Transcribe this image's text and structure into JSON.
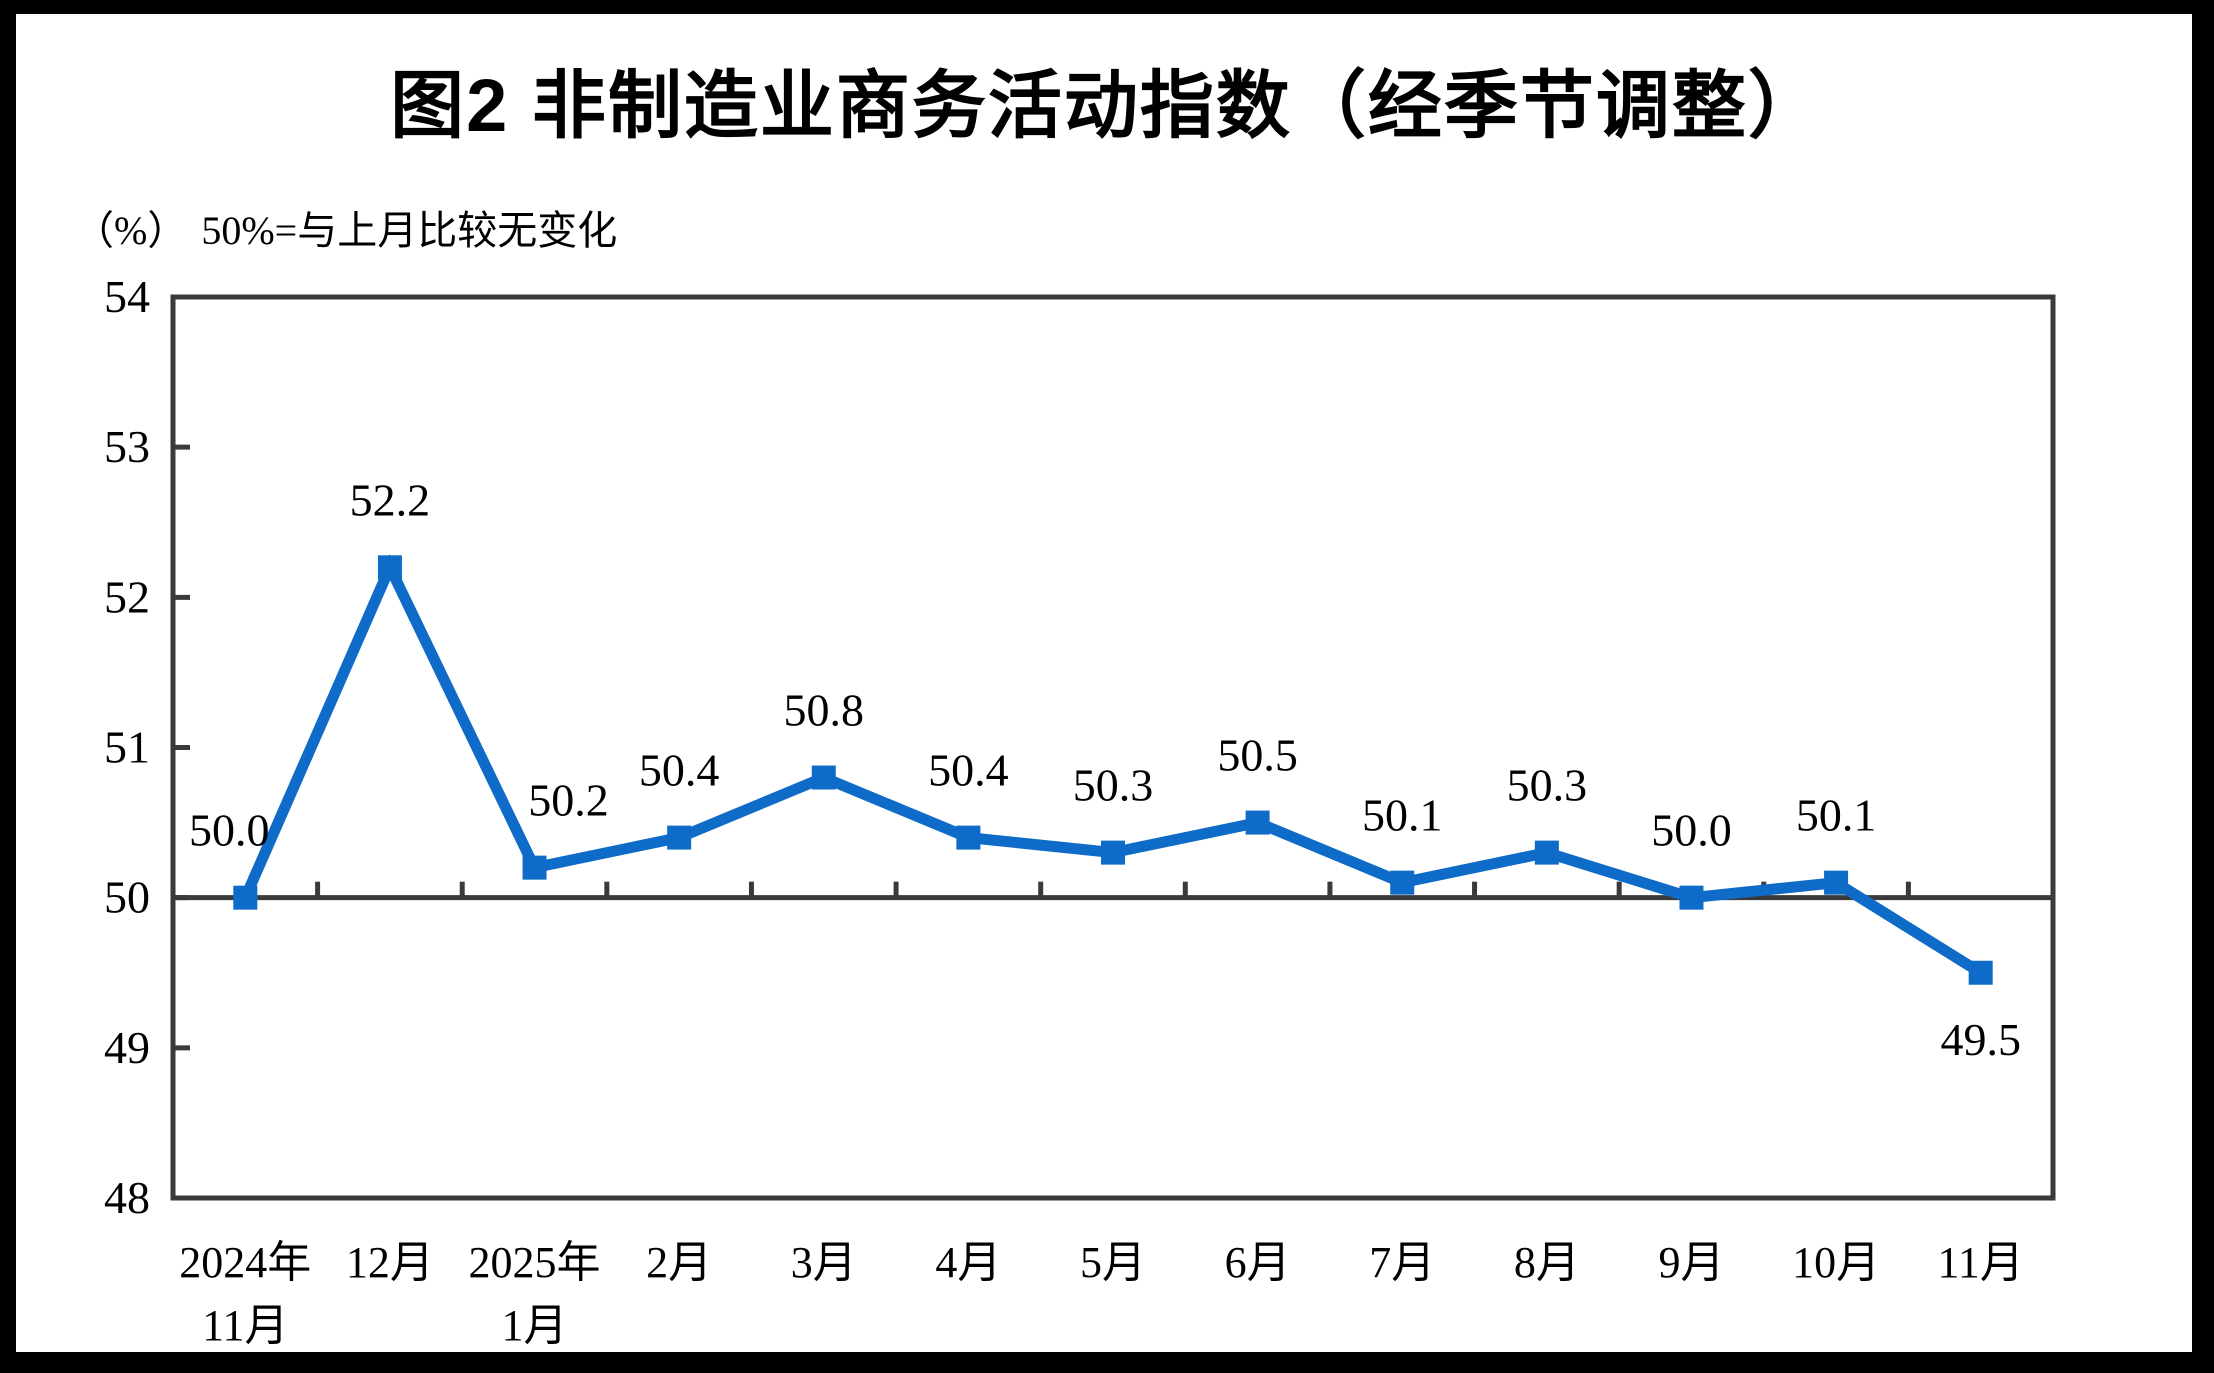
{
  "chart_data": {
    "type": "line",
    "title": "图2 非制造业商务活动指数（经季节调整）",
    "unit": "（%）",
    "subtitle": "50%=与上月比较无变化",
    "categories": [
      [
        "2024年",
        "11月"
      ],
      [
        "12月"
      ],
      [
        "2025年",
        "1月"
      ],
      [
        "2月"
      ],
      [
        "3月"
      ],
      [
        "4月"
      ],
      [
        "5月"
      ],
      [
        "6月"
      ],
      [
        "7月"
      ],
      [
        "8月"
      ],
      [
        "9月"
      ],
      [
        "10月"
      ],
      [
        "11月"
      ]
    ],
    "values": [
      50.0,
      52.2,
      50.2,
      50.4,
      50.8,
      50.4,
      50.3,
      50.5,
      50.1,
      50.3,
      50.0,
      50.1,
      49.5
    ],
    "point_labels": [
      "50.0",
      "52.2",
      "50.2",
      "50.4",
      "50.8",
      "50.4",
      "50.3",
      "50.5",
      "50.1",
      "50.3",
      "50.0",
      "50.1",
      "49.5"
    ],
    "label_side": [
      "above",
      "above",
      "above",
      "above",
      "above",
      "above",
      "above",
      "above",
      "above",
      "above",
      "above",
      "above",
      "below"
    ],
    "yticks": [
      "54",
      "53",
      "52",
      "51",
      "50",
      "49",
      "48"
    ],
    "ylim": [
      48,
      54
    ],
    "reference_line": 50,
    "legend": "none",
    "grid": "off",
    "colors": {
      "series_line": "#0E6BC8",
      "marker_fill": "#0E6BC8",
      "axis": "#3A3A3A",
      "text": "#000000",
      "background": "#FFFFFF",
      "frame": "#000000"
    },
    "marker_shape": "square"
  }
}
